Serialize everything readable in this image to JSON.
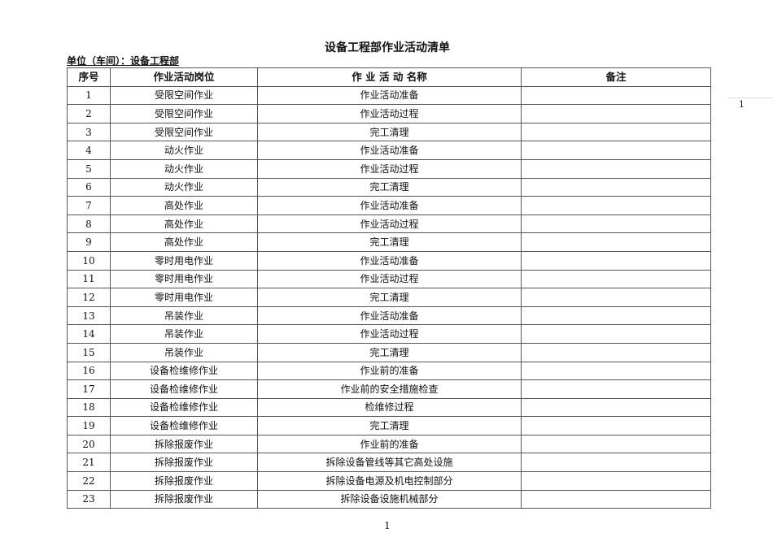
{
  "title": "设备工程部作业活动清单",
  "unit_label": "单位（车间）：设备工程部",
  "table": {
    "headers": [
      "序号",
      "作业活动岗位",
      "作 业 活 动 名称",
      "备注"
    ],
    "rows": [
      [
        "1",
        "受限空间作业",
        "作业活动准备",
        ""
      ],
      [
        "2",
        "受限空间作业",
        "作业活动过程",
        ""
      ],
      [
        "3",
        "受限空间作业",
        "完工清理",
        ""
      ],
      [
        "4",
        "动火作业",
        "作业活动准备",
        ""
      ],
      [
        "5",
        "动火作业",
        "作业活动过程",
        ""
      ],
      [
        "6",
        "动火作业",
        "完工清理",
        ""
      ],
      [
        "7",
        "高处作业",
        "作业活动准备",
        ""
      ],
      [
        "8",
        "高处作业",
        "作业活动过程",
        ""
      ],
      [
        "9",
        "高处作业",
        "完工清理",
        ""
      ],
      [
        "10",
        "零时用电作业",
        "作业活动准备",
        ""
      ],
      [
        "11",
        "零时用电作业",
        "作业活动过程",
        ""
      ],
      [
        "12",
        "零时用电作业",
        "完工清理",
        ""
      ],
      [
        "13",
        "吊装作业",
        "作业活动准备",
        ""
      ],
      [
        "14",
        "吊装作业",
        "作业活动过程",
        ""
      ],
      [
        "15",
        "吊装作业",
        "完工清理",
        ""
      ],
      [
        "16",
        "设备检维修作业",
        "作业前的准备",
        ""
      ],
      [
        "17",
        "设备检维修作业",
        "作业前的安全措施检查",
        ""
      ],
      [
        "18",
        "设备检维修作业",
        "检维修过程",
        ""
      ],
      [
        "19",
        "设备检维修作业",
        "完工清理",
        ""
      ],
      [
        "20",
        "拆除报废作业",
        "作业前的准备",
        ""
      ],
      [
        "21",
        "拆除报废作业",
        "拆除设备管线等其它高处设施",
        ""
      ],
      [
        "22",
        "拆除报废作业",
        "拆除设备电源及机电控制部分",
        ""
      ],
      [
        "23",
        "拆除报废作业",
        "拆除设备设施机械部分",
        ""
      ]
    ]
  },
  "page_number": "1",
  "side_page_number": "1"
}
